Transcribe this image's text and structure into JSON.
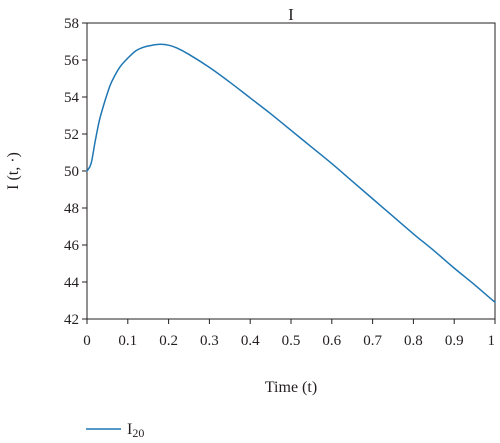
{
  "chart_data": {
    "type": "line",
    "title": "I",
    "xlabel": "Time (t)",
    "ylabel": "I (t, ·)",
    "xlim": [
      0,
      1
    ],
    "ylim": [
      42,
      58
    ],
    "x_ticks": [
      "0",
      "0.1",
      "0.2",
      "0.3",
      "0.4",
      "0.5",
      "0.6",
      "0.7",
      "0.8",
      "0.9",
      "1"
    ],
    "y_ticks": [
      "42",
      "44",
      "46",
      "48",
      "50",
      "52",
      "54",
      "56",
      "58"
    ],
    "grid": false,
    "legend_position": "bottom-left",
    "series": [
      {
        "name": "I",
        "name_subscript": "20",
        "color": "#1f77b4",
        "x": [
          0,
          0.01,
          0.02,
          0.03,
          0.04,
          0.05,
          0.06,
          0.08,
          0.1,
          0.12,
          0.14,
          0.16,
          0.18,
          0.2,
          0.22,
          0.25,
          0.3,
          0.35,
          0.4,
          0.45,
          0.5,
          0.55,
          0.6,
          0.65,
          0.7,
          0.75,
          0.8,
          0.85,
          0.9,
          0.95,
          1.0
        ],
        "y": [
          50.0,
          50.4,
          51.6,
          52.7,
          53.5,
          54.2,
          54.8,
          55.6,
          56.1,
          56.5,
          56.7,
          56.8,
          56.85,
          56.8,
          56.65,
          56.3,
          55.6,
          54.8,
          53.95,
          53.1,
          52.2,
          51.3,
          50.4,
          49.45,
          48.5,
          47.55,
          46.6,
          45.7,
          44.75,
          43.85,
          42.9
        ]
      }
    ]
  }
}
